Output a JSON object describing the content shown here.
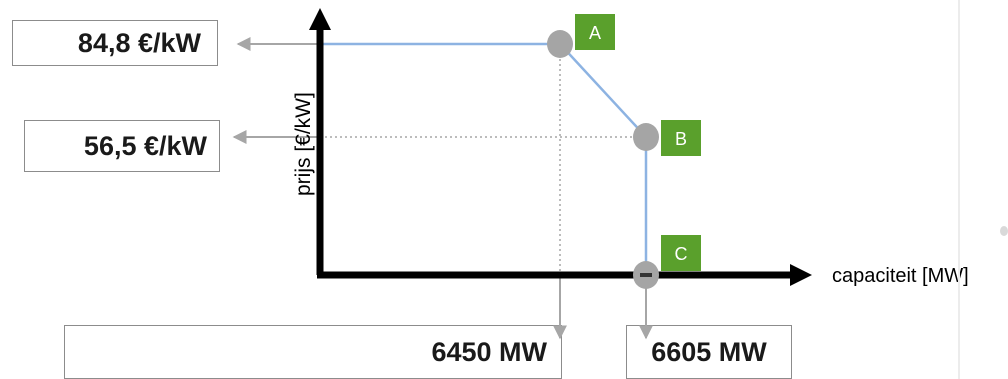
{
  "chart_data": {
    "type": "line",
    "ylabel": "prijs [€/kW]",
    "xlabel": "capaciteit [MW]",
    "points": [
      {
        "label": "A",
        "x": 6450,
        "y": 84.8
      },
      {
        "label": "B",
        "x": 6605,
        "y": 56.5
      },
      {
        "label": "C",
        "x": 6605,
        "y": 0
      }
    ],
    "curve_start": {
      "x": 0,
      "y": 84.8
    },
    "value_boxes": {
      "y_high": "84,8 €/kW",
      "y_low": "56,5 €/kW",
      "x_a": "6450 MW",
      "x_b": "6605 MW"
    },
    "colors": {
      "curve": "#8db3e2",
      "axis": "#000000",
      "marker": "#a5a5a5",
      "label_box": "#5aa02c",
      "guide": "#a6a6a6"
    }
  }
}
